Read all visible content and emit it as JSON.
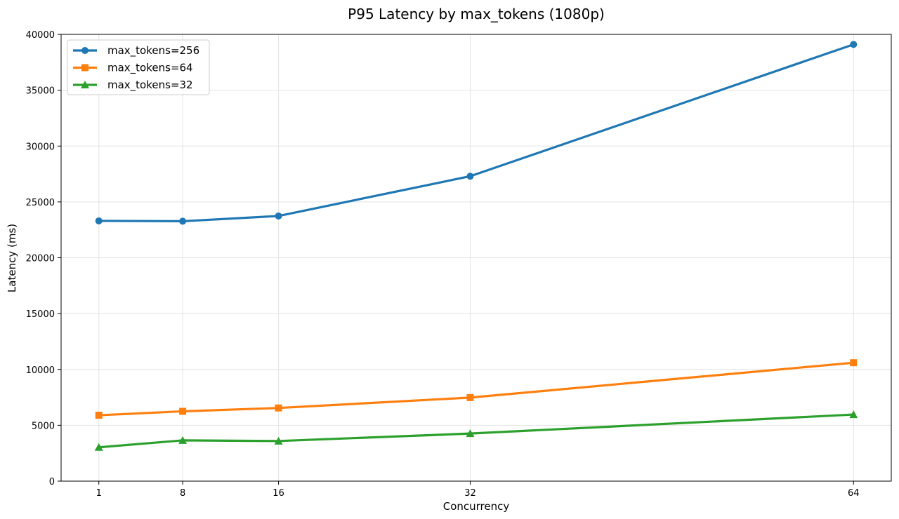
{
  "chart_data": {
    "type": "line",
    "title": "P95 Latency by max_tokens (1080p)",
    "xlabel": "Concurrency",
    "ylabel": "Latency (ms)",
    "x": [
      1,
      8,
      16,
      32,
      64
    ],
    "xticks": [
      "1",
      "8",
      "16",
      "32",
      "64"
    ],
    "xlim": [
      -2.15,
      67.15
    ],
    "ylim": [
      0,
      40000
    ],
    "yticks": [
      "0",
      "5000",
      "10000",
      "15000",
      "20000",
      "25000",
      "30000",
      "35000",
      "40000"
    ],
    "grid": true,
    "legend_position": "top-left",
    "series": [
      {
        "name": "max_tokens=256",
        "color": "#1f77b4",
        "marker": "circle",
        "values": [
          23300,
          23270,
          23740,
          27300,
          39100
        ]
      },
      {
        "name": "max_tokens=64",
        "color": "#ff7f0e",
        "marker": "square",
        "values": [
          5900,
          6250,
          6550,
          7480,
          10600
        ]
      },
      {
        "name": "max_tokens=32",
        "color": "#2ca02c",
        "marker": "triangle",
        "values": [
          3030,
          3650,
          3590,
          4260,
          5960
        ]
      }
    ]
  }
}
